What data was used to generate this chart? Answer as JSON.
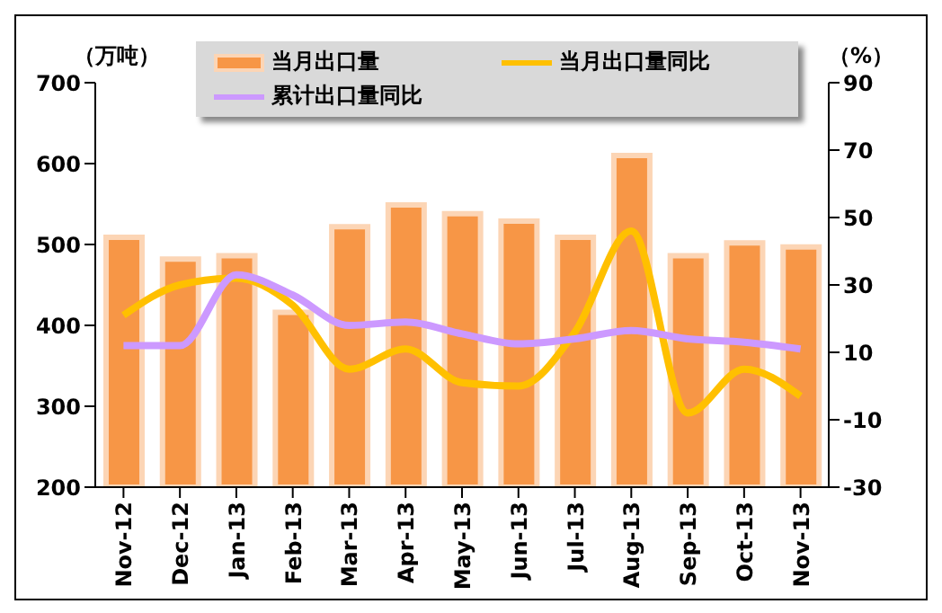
{
  "chart_data": {
    "type": "bar",
    "ylabel": "（万吨）",
    "y2label": "（%）",
    "categories": [
      "Nov-12",
      "Dec-12",
      "Jan-13",
      "Feb-13",
      "Mar-13",
      "Apr-13",
      "May-13",
      "Jun-13",
      "Jul-13",
      "Aug-13",
      "Sep-13",
      "Oct-13",
      "Nov-13"
    ],
    "series": [
      {
        "name": "当月出口量",
        "color": "#f79646",
        "values": [
          509,
          482,
          486,
          416,
          522,
          549,
          538,
          529,
          509,
          610,
          486,
          502,
          497
        ]
      },
      {
        "name": "当月出口量同比",
        "type": "line",
        "axis": "y2",
        "color": "#ffc000",
        "values": [
          21,
          30,
          32,
          24,
          5,
          11,
          1,
          0,
          16,
          46,
          -8,
          5,
          -3
        ]
      },
      {
        "name": "累计出口量同比",
        "type": "line",
        "axis": "y2",
        "color": "#cc99ff",
        "values": [
          12,
          12,
          33,
          27,
          18,
          19,
          15.5,
          12.5,
          14,
          16.5,
          14,
          13,
          11
        ]
      }
    ],
    "ylim": [
      200,
      700
    ],
    "yticks": [
      200,
      300,
      400,
      500,
      600,
      700
    ],
    "y2lim": [
      -30,
      90
    ],
    "y2ticks": [
      -30,
      -10,
      10,
      30,
      50,
      70,
      90
    ],
    "grid": false,
    "legend": "top",
    "marker": "none",
    "line_style": "solid"
  }
}
